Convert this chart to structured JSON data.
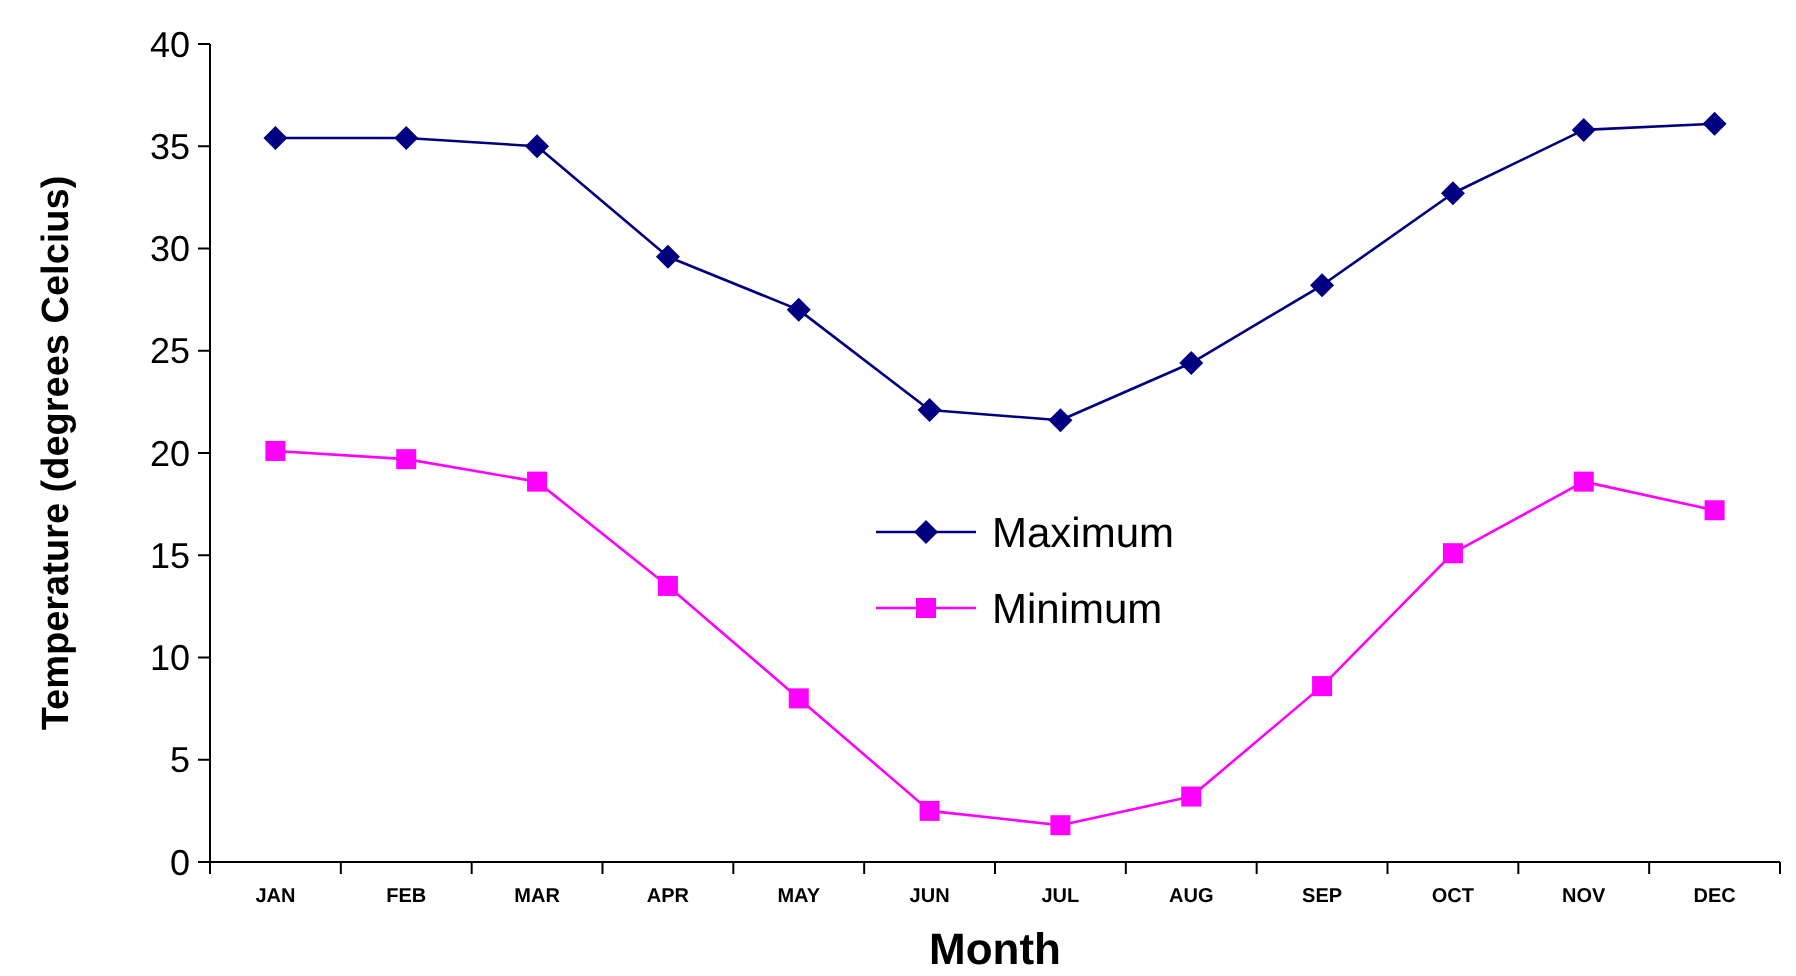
{
  "chart_data": {
    "type": "line",
    "xlabel": "Month",
    "ylabel": "Temperature (degrees Celcius)",
    "categories": [
      "JAN",
      "FEB",
      "MAR",
      "APR",
      "MAY",
      "JUN",
      "JUL",
      "AUG",
      "SEP",
      "OCT",
      "NOV",
      "DEC"
    ],
    "series": [
      {
        "name": "Maximum",
        "color": "#000080",
        "marker": "diamond",
        "values": [
          35.4,
          35.4,
          35.0,
          29.6,
          27.0,
          22.1,
          21.6,
          24.4,
          28.2,
          32.7,
          35.8,
          36.1
        ]
      },
      {
        "name": "Minimum",
        "color": "#ff00ff",
        "marker": "square",
        "values": [
          20.1,
          19.7,
          18.6,
          13.5,
          8.0,
          2.5,
          1.8,
          3.2,
          8.6,
          15.1,
          18.6,
          17.2
        ]
      }
    ],
    "ylim": [
      0,
      40
    ],
    "yticks": [
      0,
      5,
      10,
      15,
      20,
      25,
      30,
      35,
      40
    ],
    "grid": false,
    "legend": "center"
  }
}
